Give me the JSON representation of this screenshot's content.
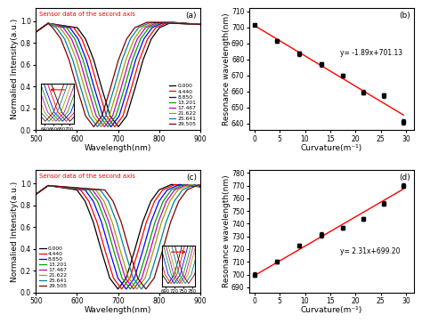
{
  "chart_data": [
    {
      "type": "line",
      "panel_label": "(a)",
      "annotation": {
        "text": "Sensor data of the second axis",
        "color": "#ff0000"
      },
      "x_label": "Wavelength(nm)",
      "y_label": "Normalied Intensity(a.u.)",
      "xlim": [
        500,
        900
      ],
      "xticks": [
        500,
        600,
        700,
        800,
        900
      ],
      "ylim": [
        0,
        1.12
      ],
      "yticks": [
        0.0,
        0.2,
        0.4,
        0.6,
        0.8,
        1.0
      ],
      "legend": "lower right",
      "inset": {
        "xlim": [
          630,
          710
        ],
        "xticks": [
          640,
          660,
          680,
          700
        ],
        "ylim": [
          0,
          0.45
        ],
        "tick_labels": "x"
      },
      "series": [
        {
          "name": "0.000",
          "color": "#000000",
          "x": [
            500,
            530,
            601,
            621,
            641,
            661,
            681,
            701,
            721,
            741,
            761,
            781,
            801,
            831,
            900
          ],
          "values": [
            0.9,
            0.98,
            0.94,
            0.836,
            0.643,
            0.378,
            0.13,
            0.03,
            0.13,
            0.378,
            0.643,
            0.836,
            0.94,
            0.99,
            0.97
          ]
        },
        {
          "name": "4.440",
          "color": "#ff0000",
          "x": [
            500,
            530,
            592,
            612,
            632,
            652,
            672,
            692,
            712,
            732,
            752,
            772,
            792,
            822,
            900
          ],
          "values": [
            0.9,
            0.98,
            0.94,
            0.836,
            0.643,
            0.378,
            0.13,
            0.03,
            0.13,
            0.378,
            0.643,
            0.836,
            0.94,
            0.99,
            0.97
          ]
        },
        {
          "name": "8.850",
          "color": "#0000ff",
          "x": [
            500,
            530,
            583,
            603,
            623,
            643,
            663,
            683,
            703,
            723,
            743,
            763,
            783,
            813,
            900
          ],
          "values": [
            0.9,
            0.98,
            0.94,
            0.836,
            0.643,
            0.378,
            0.13,
            0.03,
            0.13,
            0.378,
            0.643,
            0.836,
            0.94,
            0.99,
            0.97
          ]
        },
        {
          "name": "13.201",
          "color": "#00a000",
          "x": [
            500,
            530,
            575,
            595,
            615,
            635,
            655,
            675,
            695,
            715,
            735,
            755,
            775,
            805,
            900
          ],
          "values": [
            0.9,
            0.98,
            0.94,
            0.836,
            0.643,
            0.378,
            0.13,
            0.03,
            0.13,
            0.378,
            0.643,
            0.836,
            0.94,
            0.99,
            0.97
          ]
        },
        {
          "name": "17.467",
          "color": "#c000c0",
          "x": [
            500,
            530,
            567,
            587,
            607,
            627,
            647,
            667,
            687,
            707,
            727,
            747,
            767,
            797,
            900
          ],
          "values": [
            0.9,
            0.98,
            0.94,
            0.836,
            0.643,
            0.378,
            0.13,
            0.03,
            0.13,
            0.378,
            0.643,
            0.836,
            0.94,
            0.99,
            0.97
          ]
        },
        {
          "name": "21.622",
          "color": "#a0a000",
          "x": [
            500,
            530,
            559,
            579,
            599,
            619,
            639,
            659,
            679,
            699,
            719,
            739,
            759,
            789,
            900
          ],
          "values": [
            0.9,
            0.98,
            0.94,
            0.836,
            0.643,
            0.378,
            0.13,
            0.03,
            0.13,
            0.378,
            0.643,
            0.836,
            0.94,
            0.99,
            0.97
          ]
        },
        {
          "name": "25.641",
          "color": "#0080a0",
          "x": [
            500,
            530,
            550,
            570,
            590,
            610,
            630,
            650,
            670,
            690,
            710,
            730,
            750,
            780,
            900
          ],
          "values": [
            0.9,
            0.98,
            0.94,
            0.836,
            0.643,
            0.378,
            0.13,
            0.03,
            0.13,
            0.378,
            0.643,
            0.836,
            0.94,
            0.99,
            0.97
          ]
        },
        {
          "name": "29.505",
          "color": "#800000",
          "x": [
            500,
            530,
            541,
            561,
            581,
            601,
            621,
            641,
            661,
            681,
            701,
            721,
            741,
            771,
            900
          ],
          "values": [
            0.9,
            0.98,
            0.94,
            0.836,
            0.643,
            0.378,
            0.13,
            0.03,
            0.13,
            0.378,
            0.643,
            0.836,
            0.94,
            0.99,
            0.97
          ]
        }
      ]
    },
    {
      "type": "scatter",
      "panel_label": "(b)",
      "x_label": "Curvature(m⁻¹)",
      "y_label": "Resonance wavelength(nm)",
      "xlim": [
        -1,
        31.5
      ],
      "xticks": [
        0,
        5,
        10,
        15,
        20,
        25,
        30
      ],
      "ylim": [
        636,
        712
      ],
      "yticks": [
        640,
        650,
        660,
        670,
        680,
        690,
        700,
        710
      ],
      "color": "#000000",
      "marker": "square",
      "x": [
        0.0,
        4.44,
        8.85,
        13.201,
        17.467,
        21.622,
        25.641,
        29.505
      ],
      "values": [
        701.5,
        691.5,
        683.5,
        677,
        670,
        659.5,
        657.5,
        641
      ],
      "errors": [
        0.8,
        1.0,
        1.5,
        1.5,
        1.0,
        1.5,
        1.5,
        1.5
      ],
      "fit": {
        "slope": -1.89,
        "intercept": 701.13,
        "label": "y= -1.89x+701.13",
        "color": "#ff0000"
      }
    },
    {
      "type": "line",
      "panel_label": "(c)",
      "annotation": {
        "text": "Sensor data of the second axis",
        "color": "#ff0000"
      },
      "x_label": "Wavelength(nm)",
      "y_label": "Normalied Intensity(a.u.)",
      "xlim": [
        500,
        900
      ],
      "xticks": [
        500,
        600,
        700,
        800,
        900
      ],
      "ylim": [
        0,
        1.12
      ],
      "yticks": [
        0.0,
        0.2,
        0.4,
        0.6,
        0.8,
        1.0
      ],
      "legend": "lower left",
      "inset": {
        "xlim": [
          680,
          790
        ],
        "xticks": [
          690,
          720,
          750,
          780
        ],
        "ylim": [
          0,
          0.45
        ],
        "tick_labels": "x"
      },
      "series": [
        {
          "name": "0.000",
          "color": "#000000",
          "x": [
            500,
            530,
            600,
            620,
            640,
            660,
            680,
            700,
            720,
            740,
            760,
            780,
            800,
            830,
            900
          ],
          "values": [
            0.9,
            0.98,
            0.94,
            0.836,
            0.643,
            0.378,
            0.13,
            0.03,
            0.13,
            0.378,
            0.643,
            0.836,
            0.94,
            0.99,
            0.97
          ]
        },
        {
          "name": "4.440",
          "color": "#ff0000",
          "x": [
            500,
            530,
            609,
            629,
            649,
            669,
            689,
            709,
            729,
            749,
            769,
            789,
            809,
            839,
            900
          ],
          "values": [
            0.9,
            0.98,
            0.94,
            0.836,
            0.643,
            0.378,
            0.13,
            0.03,
            0.13,
            0.378,
            0.643,
            0.836,
            0.94,
            0.99,
            0.97
          ]
        },
        {
          "name": "8.850",
          "color": "#0000ff",
          "x": [
            500,
            530,
            620,
            640,
            660,
            680,
            700,
            720,
            740,
            760,
            780,
            800,
            820,
            850,
            900
          ],
          "values": [
            0.9,
            0.98,
            0.94,
            0.836,
            0.643,
            0.378,
            0.13,
            0.03,
            0.13,
            0.378,
            0.643,
            0.836,
            0.94,
            0.99,
            0.97
          ]
        },
        {
          "name": "13.201",
          "color": "#00a000",
          "x": [
            500,
            530,
            630,
            650,
            670,
            690,
            710,
            730,
            750,
            770,
            790,
            810,
            830,
            860,
            900
          ],
          "values": [
            0.9,
            0.98,
            0.94,
            0.836,
            0.643,
            0.378,
            0.13,
            0.03,
            0.13,
            0.378,
            0.643,
            0.836,
            0.94,
            0.99,
            0.97
          ]
        },
        {
          "name": "17.467",
          "color": "#c000c0",
          "x": [
            500,
            530,
            638,
            658,
            678,
            698,
            718,
            738,
            758,
            778,
            798,
            818,
            838,
            868,
            900
          ],
          "values": [
            0.9,
            0.98,
            0.94,
            0.836,
            0.643,
            0.378,
            0.13,
            0.03,
            0.13,
            0.378,
            0.643,
            0.836,
            0.94,
            0.99,
            0.97
          ]
        },
        {
          "name": "21.622",
          "color": "#a0a000",
          "x": [
            500,
            530,
            646,
            666,
            686,
            706,
            726,
            746,
            766,
            786,
            806,
            826,
            846,
            876,
            900
          ],
          "values": [
            0.9,
            0.98,
            0.94,
            0.836,
            0.643,
            0.378,
            0.13,
            0.03,
            0.13,
            0.378,
            0.643,
            0.836,
            0.94,
            0.99,
            0.97
          ]
        },
        {
          "name": "25.641",
          "color": "#0080a0",
          "x": [
            500,
            530,
            657,
            677,
            697,
            717,
            737,
            757,
            777,
            797,
            817,
            837,
            857,
            887,
            900
          ],
          "values": [
            0.9,
            0.98,
            0.94,
            0.836,
            0.643,
            0.378,
            0.13,
            0.03,
            0.13,
            0.378,
            0.643,
            0.836,
            0.94,
            0.99,
            0.97
          ]
        },
        {
          "name": "29.505",
          "color": "#800000",
          "x": [
            500,
            530,
            668,
            688,
            708,
            728,
            748,
            768,
            788,
            808,
            828,
            848,
            868,
            898,
            900
          ],
          "values": [
            0.9,
            0.98,
            0.94,
            0.836,
            0.643,
            0.378,
            0.13,
            0.03,
            0.13,
            0.378,
            0.643,
            0.836,
            0.94,
            0.99,
            0.97
          ]
        }
      ]
    },
    {
      "type": "scatter",
      "panel_label": "(d)",
      "x_label": "Curvature(m⁻¹)",
      "y_label": "Resonance wavelength(nm)",
      "xlim": [
        -1,
        31.5
      ],
      "xticks": [
        0,
        5,
        10,
        15,
        20,
        25,
        30
      ],
      "ylim": [
        686,
        782
      ],
      "yticks": [
        690,
        700,
        710,
        720,
        730,
        740,
        750,
        760,
        770,
        780
      ],
      "color": "#000000",
      "marker": "square",
      "x": [
        0.0,
        4.44,
        8.85,
        13.201,
        17.467,
        21.622,
        25.641,
        29.505
      ],
      "values": [
        700,
        710,
        723,
        731,
        737,
        744,
        756,
        770
      ],
      "errors": [
        1.5,
        1.5,
        1.5,
        2.0,
        1.5,
        1.5,
        2.0,
        1.5
      ],
      "fit": {
        "slope": 2.31,
        "intercept": 699.2,
        "label": "y= 2.31x+699.20",
        "color": "#ff0000"
      }
    }
  ]
}
